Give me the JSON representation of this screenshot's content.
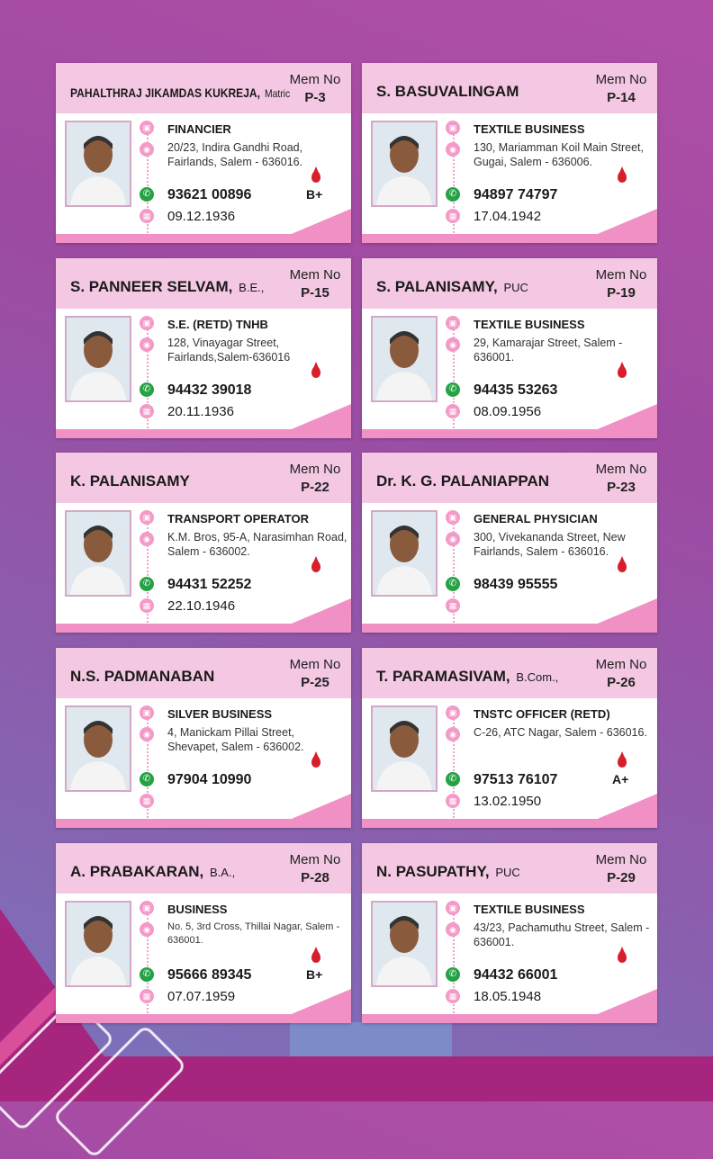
{
  "mem_label": "Mem No",
  "cards": [
    {
      "name": "PAHALTHRAJ JIKAMDAS KUKREJA,",
      "qual": "Matric",
      "mem": "P-3",
      "occupation": "FINANCIER",
      "address": "20/23, Indira Gandhi Road, Fairlands, Salem - 636016.",
      "phone": "93621 00896",
      "dob": "09.12.1936",
      "blood": "B+"
    },
    {
      "name": "S. BASUVALINGAM",
      "qual": "",
      "mem": "P-14",
      "occupation": "TEXTILE BUSINESS",
      "address": "130, Mariamman Koil Main Street, Gugai, Salem - 636006.",
      "phone": "94897 74797",
      "dob": "17.04.1942",
      "blood": ""
    },
    {
      "name": "S. PANNEER SELVAM,",
      "qual": "B.E.,",
      "mem": "P-15",
      "occupation": "S.E. (RETD) TNHB",
      "address": "128, Vinayagar Street, Fairlands,Salem-636016",
      "phone": "94432 39018",
      "dob": "20.11.1936",
      "blood": ""
    },
    {
      "name": "S. PALANISAMY,",
      "qual": "PUC",
      "mem": "P-19",
      "occupation": "TEXTILE BUSINESS",
      "address": "29, Kamarajar Street, Salem - 636001.",
      "phone": "94435 53263",
      "dob": "08.09.1956",
      "blood": ""
    },
    {
      "name": "K. PALANISAMY",
      "qual": "",
      "mem": "P-22",
      "occupation": "TRANSPORT OPERATOR",
      "address": "K.M. Bros, 95-A, Narasimhan Road, Salem - 636002.",
      "phone": "94431 52252",
      "dob": "22.10.1946",
      "blood": ""
    },
    {
      "name": "Dr. K. G. PALANIAPPAN",
      "qual": "",
      "mem": "P-23",
      "occupation": "GENERAL PHYSICIAN",
      "address": "300, Vivekananda Street, New Fairlands, Salem - 636016.",
      "phone": "98439 95555",
      "dob": "",
      "blood": ""
    },
    {
      "name": "N.S. PADMANABAN",
      "qual": "",
      "mem": "P-25",
      "occupation": "SILVER BUSINESS",
      "address": "4, Manickam Pillai Street, Shevapet, Salem - 636002.",
      "phone": "97904 10990",
      "dob": "",
      "blood": ""
    },
    {
      "name": "T. PARAMASIVAM,",
      "qual": "B.Com.,",
      "mem": "P-26",
      "occupation": "TNSTC OFFICER (RETD)",
      "address": "C-26, ATC Nagar, Salem - 636016.",
      "phone": "97513 76107",
      "dob": "13.02.1950",
      "blood": "A+"
    },
    {
      "name": "A. PRABAKARAN,",
      "qual": "B.A.,",
      "mem": "P-28",
      "occupation": "BUSINESS",
      "address": "No. 5, 3rd Cross, Thillai Nagar, Salem - 636001.",
      "phone": "95666 89345",
      "dob": "07.07.1959",
      "blood": "B+"
    },
    {
      "name": "N. PASUPATHY,",
      "qual": "PUC",
      "mem": "P-29",
      "occupation": "TEXTILE BUSINESS",
      "address": "43/23, Pachamuthu Street, Salem - 636001.",
      "phone": "94432 66001",
      "dob": "18.05.1948",
      "blood": ""
    }
  ]
}
